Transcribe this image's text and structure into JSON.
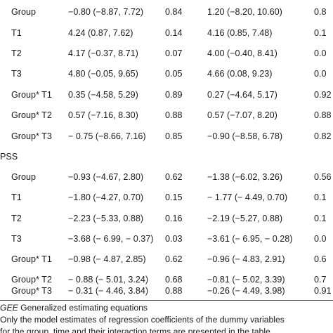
{
  "section_top": {
    "rows": [
      {
        "label": "Group",
        "ci1": "−0.80 (−8.87, 7.72)",
        "p1": "0.84",
        "ci2": "1.20 (−8.20, 10.60)",
        "p2": "0.8"
      },
      {
        "label": "T1",
        "ci1": "4.24 (0.87, 7.62)",
        "p1": "0.14",
        "ci2": "4.16 (0.85, 7.48)",
        "p2": "0.1"
      },
      {
        "label": "T2",
        "ci1": "4.17 (−0.37, 8.71)",
        "p1": "0.07",
        "ci2": "4.00 (−0.40, 8.41)",
        "p2": "0.0"
      },
      {
        "label": "T3",
        "ci1": "4.80 (−0.05, 9.65)",
        "p1": "0.05",
        "ci2": "4.66 (0.08, 9.23)",
        "p2": "0.0"
      },
      {
        "label": "Group* T1",
        "ci1": "0.35 (−4.58, 5.29)",
        "p1": "0.89",
        "ci2": "0.27 (−4.64, 5.17)",
        "p2": "0.92"
      },
      {
        "label": "Group* T2",
        "ci1": "0.57 (−7.16, 8.30)",
        "p1": "0.88",
        "ci2": "0.57 (−7.07, 8.20)",
        "p2": "0.88"
      },
      {
        "label": "Group* T3",
        "ci1": "− 0.75 (−8.66, 7.16)",
        "p1": "0.85",
        "ci2": "−0.90 (−8.58, 6.78)",
        "p2": "0.82"
      }
    ]
  },
  "section_pss": {
    "heading": "PSS",
    "rows": [
      {
        "label": "Group",
        "ci1": "−0.93 (−4.67, 2.80)",
        "p1": "0.62",
        "ci2": "−1.38 (−6.02, 3.26)",
        "p2": "0.56"
      },
      {
        "label": "T1",
        "ci1": "−1.80 (−4.27, 0.70)",
        "p1": "0.15",
        "ci2": "− 1.77 (− 4.49, 0.70)",
        "p2": "0.1"
      },
      {
        "label": "T2",
        "ci1": "−2.23 (−5.33, 0.88)",
        "p1": "0.16",
        "ci2": "−2.19 (−5.27, 0.88)",
        "p2": "0.1"
      },
      {
        "label": "T3",
        "ci1": "−3.68 (− 6.99, − 0.37)",
        "p1": "0.03",
        "ci2": "−3.61 (− 6.95, − 0.28)",
        "p2": "0.0"
      },
      {
        "label": "Group* T1",
        "ci1": "−0.98 (− 4.87, 2.85)",
        "p1": "0.62",
        "ci2": "−0.96 (− 4.83, 2.91)",
        "p2": "0.6"
      },
      {
        "label": "Group* T2",
        "ci1": "− 0.88 (− 5.01, 3.24)",
        "p1": "0.68",
        "ci2": "−0.81 (− 5.02, 3.39)",
        "p2": "0.7"
      },
      {
        "label": "Group* T3",
        "ci1": "− 0.31 (− 4.46, 3.84)",
        "p1": "0.88",
        "ci2": "−0.26 (− 4.49, 3.98)",
        "p2": "0.91"
      }
    ]
  },
  "footnotes": {
    "abbr": "GEE",
    "abbr_text": " Generalized estimating equations",
    "line2": "Only the model estimates of regression coefficients of the dummy variables",
    "line3": "for the group, time and their interaction terms are presented in the table"
  }
}
